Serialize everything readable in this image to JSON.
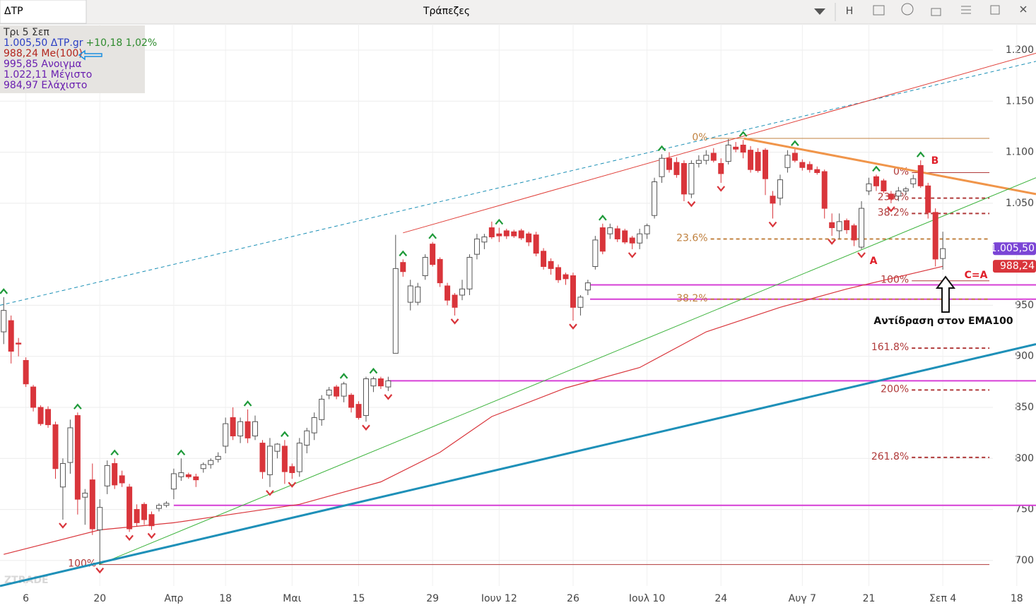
{
  "header": {
    "symbol": "ΔΤΡ",
    "title": "Τράπεζες",
    "mode": "H"
  },
  "info_lines": [
    {
      "text": "Τρι 5 Σεπ",
      "color": "#333"
    },
    {
      "text": "1.005,50 ΔΤΡ.gr",
      "color": "#2b3fc4",
      "extra": "+10,18 1,02%",
      "extra_color": "#2e8b2e"
    },
    {
      "text": "988,24 Me(100)",
      "color": "#b3261e"
    },
    {
      "text": "995,85 Ανοιγμα",
      "color": "#6a1fb0"
    },
    {
      "text": "1.022,11 Μέγιστο",
      "color": "#6a1fb0"
    },
    {
      "text": "984,97 Ελάχιστο",
      "color": "#6a1fb0"
    }
  ],
  "chart_data": {
    "type": "candlestick",
    "watermark": "ZTRADE",
    "xlim": [
      -0.5,
      139.6
    ],
    "ylim": [
      675,
      1225.6
    ],
    "grid": true,
    "xticks": [
      {
        "value": 3,
        "label": "6"
      },
      {
        "value": 13,
        "label": "20"
      },
      {
        "value": 23,
        "label": "Απρ"
      },
      {
        "value": 30,
        "label": "18"
      },
      {
        "value": 39,
        "label": "Μαι"
      },
      {
        "value": 48,
        "label": "15"
      },
      {
        "value": 58,
        "label": "29"
      },
      {
        "value": 67,
        "label": "Ιουν 12"
      },
      {
        "value": 77,
        "label": "26"
      },
      {
        "value": 87,
        "label": "Ιουλ 10"
      },
      {
        "value": 97,
        "label": "24"
      },
      {
        "value": 108,
        "label": "Αυγ 7"
      },
      {
        "value": 117,
        "label": "21"
      },
      {
        "value": 127,
        "label": "Σεπ 4"
      },
      {
        "value": 137,
        "label": "18"
      }
    ],
    "yticks": [
      {
        "value": 1200,
        "label": "1.200"
      },
      {
        "value": 1150,
        "label": "1.150"
      },
      {
        "value": 1100,
        "label": "1.100"
      },
      {
        "value": 1050,
        "label": "1.050"
      },
      950,
      900,
      850,
      800,
      750,
      700
    ],
    "up_color": "#ffffff",
    "down_color": "#d9353b",
    "candles": [
      [
        924,
        958,
        912,
        945
      ],
      [
        935,
        940,
        893,
        905
      ],
      [
        913,
        918,
        900,
        912
      ],
      [
        896,
        899,
        870,
        873
      ],
      [
        870,
        872,
        846,
        850
      ],
      [
        850,
        852,
        832,
        834
      ],
      [
        848,
        851,
        830,
        833
      ],
      [
        833,
        836,
        780,
        790
      ],
      [
        772,
        800,
        740,
        795
      ],
      [
        796,
        838,
        785,
        830
      ],
      [
        842,
        845,
        745,
        760
      ],
      [
        762,
        770,
        735,
        766
      ],
      [
        779,
        795,
        725,
        731
      ],
      [
        730,
        760,
        696,
        752
      ],
      [
        773,
        798,
        765,
        793
      ],
      [
        795,
        800,
        770,
        774
      ],
      [
        783,
        788,
        772,
        776
      ],
      [
        772,
        775,
        728,
        731
      ],
      [
        750,
        755,
        733,
        737
      ],
      [
        755,
        757,
        735,
        740
      ],
      [
        745,
        748,
        730,
        734
      ],
      [
        751,
        756,
        748,
        754
      ],
      [
        754,
        758,
        752,
        756
      ],
      [
        770,
        790,
        760,
        785
      ],
      [
        782,
        800,
        778,
        786
      ],
      [
        784,
        786,
        780,
        782
      ],
      [
        782,
        785,
        772,
        779
      ],
      [
        790,
        796,
        786,
        794
      ],
      [
        794,
        800,
        790,
        798
      ],
      [
        799,
        806,
        796,
        802
      ],
      [
        812,
        840,
        805,
        834
      ],
      [
        840,
        850,
        818,
        822
      ],
      [
        822,
        840,
        815,
        836
      ],
      [
        836,
        848,
        815,
        820
      ],
      [
        822,
        842,
        818,
        836
      ],
      [
        815,
        818,
        780,
        787
      ],
      [
        784,
        820,
        772,
        812
      ],
      [
        807,
        815,
        800,
        814
      ],
      [
        812,
        818,
        775,
        787
      ],
      [
        792,
        795,
        780,
        786
      ],
      [
        787,
        820,
        782,
        815
      ],
      [
        813,
        830,
        805,
        827
      ],
      [
        825,
        845,
        818,
        840
      ],
      [
        838,
        862,
        832,
        858
      ],
      [
        862,
        870,
        858,
        867
      ],
      [
        870,
        872,
        858,
        861
      ],
      [
        861,
        875,
        855,
        873
      ],
      [
        862,
        864,
        845,
        850
      ],
      [
        853,
        856,
        838,
        840
      ],
      [
        842,
        880,
        836,
        878
      ],
      [
        871,
        880,
        865,
        878
      ],
      [
        878,
        880,
        868,
        871
      ],
      [
        870,
        880,
        866,
        876
      ],
      [
        903,
        1019,
        903,
        986
      ],
      [
        992,
        995,
        978,
        983
      ],
      [
        953,
        975,
        945,
        969
      ],
      [
        953,
        972,
        950,
        968
      ],
      [
        979,
        1000,
        975,
        997
      ],
      [
        1010,
        1012,
        988,
        990
      ],
      [
        995,
        997,
        968,
        972
      ],
      [
        969,
        972,
        950,
        955
      ],
      [
        960,
        962,
        940,
        948
      ],
      [
        960,
        975,
        955,
        966
      ],
      [
        966,
        1000,
        960,
        997
      ],
      [
        1000,
        1020,
        995,
        1015
      ],
      [
        1012,
        1020,
        1005,
        1017
      ],
      [
        1026,
        1032,
        1015,
        1017
      ],
      [
        1020,
        1026,
        1012,
        1018
      ],
      [
        1023,
        1025,
        1015,
        1018
      ],
      [
        1022,
        1024,
        1016,
        1018
      ],
      [
        1023,
        1025,
        1014,
        1016
      ],
      [
        1020,
        1022,
        1008,
        1012
      ],
      [
        1019,
        1022,
        998,
        1001
      ],
      [
        1003,
        1006,
        985,
        988
      ],
      [
        993,
        996,
        980,
        986
      ],
      [
        987,
        990,
        972,
        975
      ],
      [
        980,
        982,
        970,
        976
      ],
      [
        979,
        982,
        935,
        948
      ],
      [
        948,
        960,
        940,
        958
      ],
      [
        965,
        975,
        960,
        972
      ],
      [
        988,
        1018,
        985,
        1014
      ],
      [
        1026,
        1030,
        1000,
        1003
      ],
      [
        1020,
        1030,
        1015,
        1026
      ],
      [
        1025,
        1028,
        1012,
        1015
      ],
      [
        1023,
        1025,
        1010,
        1012
      ],
      [
        1016,
        1018,
        1005,
        1011
      ],
      [
        1011,
        1025,
        1005,
        1020
      ],
      [
        1020,
        1030,
        1015,
        1028
      ],
      [
        1038,
        1075,
        1035,
        1071
      ],
      [
        1076,
        1098,
        1070,
        1094
      ],
      [
        1094,
        1100,
        1080,
        1083
      ],
      [
        1090,
        1095,
        1075,
        1078
      ],
      [
        1089,
        1092,
        1052,
        1059
      ],
      [
        1059,
        1092,
        1055,
        1089
      ],
      [
        1089,
        1097,
        1085,
        1092
      ],
      [
        1092,
        1102,
        1088,
        1097
      ],
      [
        1099,
        1104,
        1090,
        1092
      ],
      [
        1089,
        1094,
        1070,
        1079
      ],
      [
        1091,
        1113,
        1088,
        1107
      ],
      [
        1105,
        1110,
        1100,
        1103
      ],
      [
        1107,
        1112,
        1094,
        1100
      ],
      [
        1102,
        1106,
        1080,
        1083
      ],
      [
        1100,
        1104,
        1080,
        1082
      ],
      [
        1102,
        1104,
        1058,
        1074
      ],
      [
        1057,
        1062,
        1035,
        1050
      ],
      [
        1055,
        1078,
        1048,
        1073
      ],
      [
        1085,
        1102,
        1080,
        1097
      ],
      [
        1099,
        1103,
        1090,
        1092
      ],
      [
        1090,
        1093,
        1082,
        1085
      ],
      [
        1088,
        1091,
        1080,
        1083
      ],
      [
        1083,
        1086,
        1078,
        1080
      ],
      [
        1081,
        1083,
        1035,
        1045
      ],
      [
        1031,
        1040,
        1018,
        1026
      ],
      [
        1023,
        1040,
        1015,
        1032
      ],
      [
        1033,
        1035,
        1020,
        1024
      ],
      [
        1028,
        1030,
        1008,
        1014
      ],
      [
        1007,
        1052,
        1005,
        1045
      ],
      [
        1062,
        1075,
        1058,
        1069
      ],
      [
        1076,
        1078,
        1062,
        1067
      ],
      [
        1072,
        1074,
        1060,
        1062
      ],
      [
        1059,
        1062,
        1050,
        1054
      ],
      [
        1057,
        1066,
        1052,
        1062
      ],
      [
        1062,
        1066,
        1058,
        1064
      ],
      [
        1069,
        1078,
        1065,
        1074
      ],
      [
        1087,
        1092,
        1065,
        1067
      ],
      [
        1067,
        1070,
        1035,
        1041
      ],
      [
        1041,
        1045,
        988,
        995.32
      ],
      [
        995.85,
        1022.11,
        984.97,
        1005.5
      ]
    ],
    "signals_up": [
      0,
      10,
      15,
      24,
      33,
      38,
      46,
      50,
      54,
      58,
      67,
      81,
      89,
      100,
      107,
      118,
      124
    ],
    "signals_down": [
      8,
      13,
      17,
      20,
      36,
      39,
      49,
      52,
      61,
      77,
      85,
      93,
      97,
      104,
      112,
      116,
      120
    ],
    "ema100": {
      "color": "#d9353b",
      "x": [
        0,
        13,
        23,
        40,
        51,
        59,
        66,
        76,
        86,
        95,
        105,
        114,
        124,
        127
      ],
      "values": [
        706,
        730,
        737,
        755,
        777,
        806,
        841,
        869,
        889,
        924,
        948,
        966,
        983,
        988.24
      ]
    },
    "trendlines": [
      {
        "color": "#1a8fb5",
        "style": "dashed",
        "x": [
          -0.5,
          139.6
        ],
        "values": [
          950,
          1189
        ]
      },
      {
        "color": "#e0403a",
        "style": "solid",
        "x": [
          54,
          139.6
        ],
        "values": [
          1021,
          1197
        ]
      },
      {
        "color": "#f0954a",
        "style": "thick",
        "x": [
          100.1,
          139.6
        ],
        "values": [
          1113.5,
          1059
        ]
      },
      {
        "color": "#3cb33c",
        "style": "solid",
        "x": [
          12.9,
          139.6
        ],
        "values": [
          696,
          1075
        ]
      },
      {
        "color": "#1e90b8",
        "style": "thick",
        "x": [
          -0.5,
          139.6
        ],
        "values": [
          675,
          912
        ]
      }
    ],
    "hlines": [
      {
        "color": "#d63fd6",
        "value": 970,
        "x": [
          79.3,
          139.6
        ]
      },
      {
        "color": "#d63fd6",
        "value": 956,
        "x": [
          79.3,
          139.6
        ]
      },
      {
        "color": "#d63fd6",
        "value": 876,
        "x": [
          52,
          139.6
        ]
      },
      {
        "color": "#d63fd6",
        "value": 754,
        "x": [
          23,
          139.6
        ]
      }
    ],
    "fib": [
      {
        "label": "0%",
        "value": 1113.5,
        "style": "solid",
        "color": "#c0813f",
        "x": [
          95.6,
          133.3
        ]
      },
      {
        "label": "23.6%",
        "value": 1015,
        "style": "dashed",
        "color": "#c0813f",
        "x": [
          95.6,
          133.3
        ]
      },
      {
        "label": "38.2%",
        "value": 956,
        "style": "dashed",
        "color": "#c0813f",
        "x": [
          95.6,
          133.3
        ]
      },
      {
        "label": "100%",
        "value": 696,
        "style": "solid",
        "color": "#b03a3a",
        "x": [
          12.9,
          133.3
        ]
      },
      {
        "label": "0%",
        "value": 1080,
        "style": "solid",
        "color": "#b03a3a",
        "x": [
          122.8,
          133.3
        ]
      },
      {
        "label": "23.6%",
        "value": 1055,
        "style": "dashed",
        "color": "#b03a3a",
        "x": [
          122.8,
          133.3
        ]
      },
      {
        "label": "38.2%",
        "value": 1040,
        "style": "dashed",
        "color": "#b03a3a",
        "x": [
          122.8,
          133.3
        ]
      },
      {
        "label": "100%",
        "value": 974,
        "style": "solid",
        "color": "#b03a3a",
        "x": [
          122.8,
          133.3
        ]
      },
      {
        "label": "161.8%",
        "value": 908,
        "style": "dashed",
        "color": "#b03a3a",
        "x": [
          122.8,
          133.3
        ]
      },
      {
        "label": "200%",
        "value": 867,
        "style": "dashed",
        "color": "#b03a3a",
        "x": [
          122.8,
          133.3
        ]
      },
      {
        "label": "261.8%",
        "value": 801,
        "style": "dashed",
        "color": "#b03a3a",
        "x": [
          122.8,
          133.3
        ]
      }
    ],
    "badges": [
      {
        "value": 1005.5,
        "label": "1.005,50",
        "color": "#7b45d6"
      },
      {
        "value": 988.24,
        "label": "988,24",
        "color": "#d9353b"
      }
    ],
    "annotations": [
      {
        "text": "A",
        "color": "#e0202a"
      },
      {
        "text": "B",
        "color": "#e0202a"
      },
      {
        "text": "C=A",
        "color": "#e0202a"
      },
      {
        "text": "Αντίδραση στον EMA100",
        "color": "#111"
      }
    ]
  }
}
